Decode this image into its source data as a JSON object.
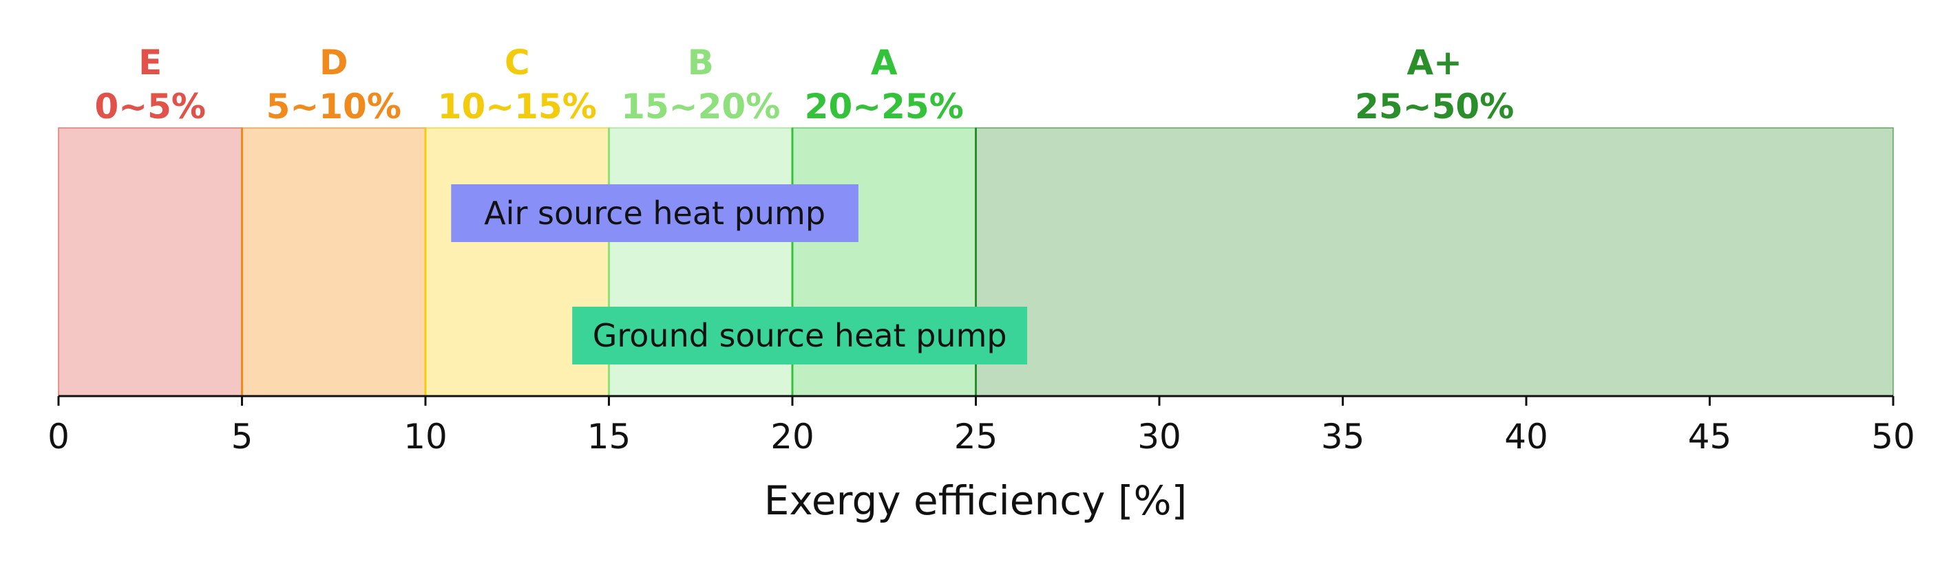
{
  "chart_data": {
    "type": "bar",
    "xlabel": "Exergy efficiency [%]",
    "xlim": [
      0,
      50
    ],
    "xticks": [
      0,
      5,
      10,
      15,
      20,
      25,
      30,
      35,
      40,
      45,
      50
    ],
    "grid": false,
    "grades": [
      {
        "letter": "E",
        "range_label": "0~5%",
        "start": 0,
        "end": 5,
        "color": "#e0524a",
        "fill": "#f4c6c4"
      },
      {
        "letter": "D",
        "range_label": "5~10%",
        "start": 5,
        "end": 10,
        "color": "#f08a1c",
        "fill": "#fdd9b0"
      },
      {
        "letter": "C",
        "range_label": "10~15%",
        "start": 10,
        "end": 15,
        "color": "#f2cc0c",
        "fill": "#fef0b0"
      },
      {
        "letter": "B",
        "range_label": "15~20%",
        "start": 15,
        "end": 20,
        "color": "#8ee07c",
        "fill": "#dbf7da"
      },
      {
        "letter": "A",
        "range_label": "20~25%",
        "start": 20,
        "end": 25,
        "color": "#34c23a",
        "fill": "#c0efc2"
      },
      {
        "letter": "A+",
        "range_label": "25~50%",
        "start": 25,
        "end": 50,
        "color": "#2a8f2a",
        "fill": "#bfddbe"
      }
    ],
    "ranges": [
      {
        "name": "Air source heat pump",
        "start": 10.7,
        "end": 21.8,
        "color": "#8890f8"
      },
      {
        "name": "Ground source heat pump",
        "start": 14.0,
        "end": 26.4,
        "color": "#3ad398"
      }
    ]
  }
}
